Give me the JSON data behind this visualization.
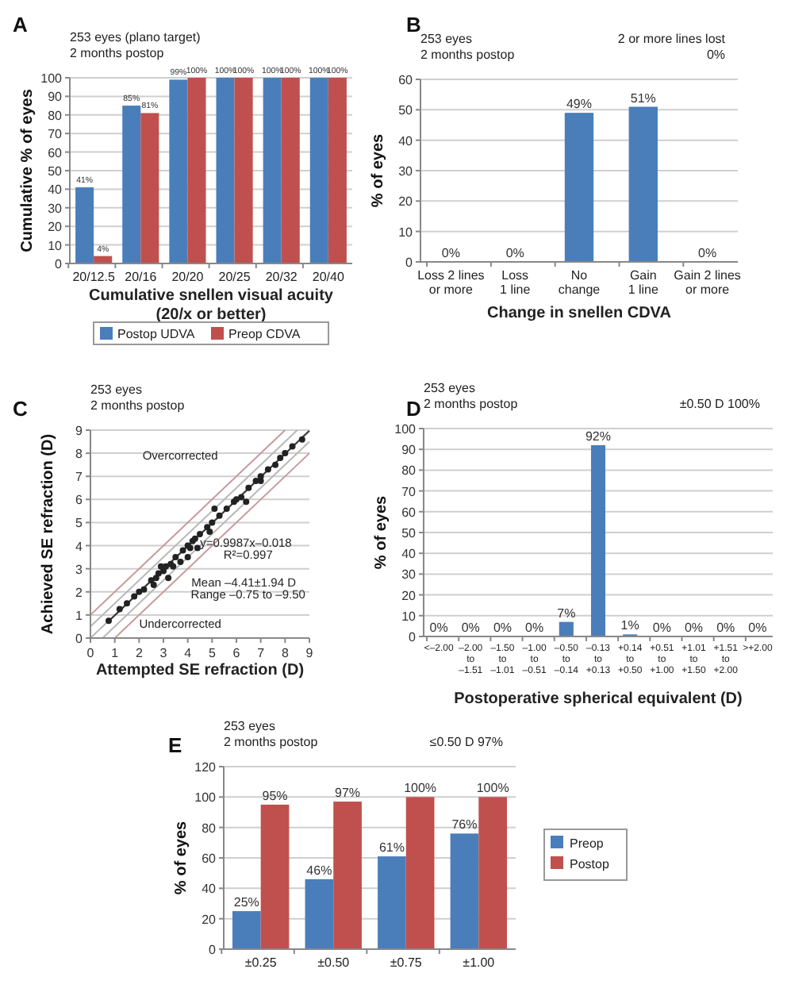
{
  "chart_data": [
    {
      "type": "bar",
      "title": "A",
      "annotations": [
        "253 eyes (plano target)\n2 months postop"
      ],
      "categories": [
        "20/12.5",
        "20/16",
        "20/20",
        "20/25",
        "20/32",
        "20/40"
      ],
      "series": [
        {
          "name": "Postop UDVA",
          "color": "#4a7ebb",
          "values": [
            41,
            85,
            99,
            100,
            100,
            100
          ],
          "value_labels": [
            "41%",
            "85%",
            "99%",
            "100%",
            "100%",
            "100%"
          ]
        },
        {
          "name": "Preop CDVA",
          "color": "#c0504d",
          "values": [
            4,
            81,
            100,
            100,
            100,
            100
          ],
          "value_labels": [
            "4%",
            "81%",
            "100%",
            "100%",
            "100%",
            "100%"
          ]
        }
      ],
      "xlabel": "Cumulative snellen visual acuity\n(20/x or better)",
      "ylabel": "Cumulative % of eyes",
      "ylim": [
        0,
        100
      ],
      "yticks": [
        0,
        10,
        20,
        30,
        40,
        50,
        60,
        70,
        80,
        90,
        100
      ],
      "grid": "y",
      "legend": "bottom"
    },
    {
      "type": "bar",
      "title": "B",
      "annotations": [
        "253 eyes\n2 months postop",
        "2 or more lines lost\n0%"
      ],
      "categories": [
        "Loss 2 lines\nor more",
        "Loss\n1 line",
        "No\nchange",
        "Gain\n1 line",
        "Gain 2 lines\nor more"
      ],
      "series": [
        {
          "color": "#4a7ebb",
          "values": [
            0,
            0,
            49,
            51,
            0
          ],
          "value_labels": [
            "0%",
            "0%",
            "49%",
            "51%",
            "0%"
          ]
        }
      ],
      "xlabel": "Change in snellen CDVA",
      "ylabel": "% of eyes",
      "ylim": [
        0,
        60
      ],
      "yticks": [
        0,
        10,
        20,
        30,
        40,
        50,
        60
      ],
      "grid": "y"
    },
    {
      "type": "scatter",
      "title": "C",
      "annotations": [
        "253 eyes\n2 months postop",
        "Overcorrected",
        "Undercorrected",
        "y=0.9987x–0.018",
        "R²=0.997",
        "Mean –4.41±1.94 D",
        "Range –0.75 to –9.50"
      ],
      "series": [
        {
          "type": "line",
          "color": "#b8b8b8",
          "x": [
            0,
            9
          ],
          "values": [
            0,
            9
          ]
        },
        {
          "type": "line",
          "color": "#b8b8b8",
          "x": [
            0,
            8.5
          ],
          "values": [
            0.5,
            9
          ]
        },
        {
          "type": "line",
          "color": "#b8b8b8",
          "x": [
            0.5,
            9
          ],
          "values": [
            0,
            8.5
          ]
        },
        {
          "type": "line",
          "color": "#c89a9a",
          "x": [
            0,
            8
          ],
          "values": [
            1,
            9
          ]
        },
        {
          "type": "line",
          "color": "#c89a9a",
          "x": [
            1,
            9
          ],
          "values": [
            0,
            8
          ]
        },
        {
          "type": "line",
          "color": "#333333",
          "x": [
            0.75,
            9
          ],
          "values": [
            0.73,
            8.97
          ]
        },
        {
          "type": "scatter",
          "color": "#222222",
          "x": [
            0.75,
            1.2,
            1.5,
            1.8,
            2.0,
            2.2,
            2.5,
            2.6,
            2.7,
            2.8,
            2.9,
            3.0,
            3.1,
            3.2,
            3.3,
            3.4,
            3.5,
            3.7,
            3.8,
            4.0,
            4.0,
            4.1,
            4.2,
            4.3,
            4.4,
            4.5,
            4.8,
            4.9,
            5.0,
            5.1,
            5.3,
            5.6,
            5.9,
            6.0,
            6.2,
            6.4,
            6.5,
            6.8,
            7.0,
            7.0,
            7.3,
            7.6,
            7.8,
            8.0,
            8.3,
            8.7
          ],
          "values": [
            0.75,
            1.25,
            1.5,
            1.8,
            2.0,
            2.1,
            2.5,
            2.3,
            2.6,
            2.8,
            3.1,
            2.9,
            3.1,
            2.6,
            3.2,
            3.1,
            3.5,
            3.3,
            3.8,
            3.5,
            4.0,
            3.9,
            4.2,
            4.3,
            3.9,
            4.5,
            4.8,
            4.6,
            5.0,
            5.6,
            5.3,
            5.6,
            5.9,
            6.0,
            6.1,
            5.9,
            6.5,
            6.8,
            7.0,
            6.8,
            7.3,
            7.5,
            7.8,
            8.0,
            8.3,
            8.6
          ]
        }
      ],
      "xlabel": "Attempted SE refraction (D)",
      "ylabel": "Achieved SE refraction (D)",
      "xlim": [
        0,
        9
      ],
      "ylim": [
        0,
        9
      ],
      "xticks": [
        0,
        1,
        2,
        3,
        4,
        5,
        6,
        7,
        8,
        9
      ],
      "yticks": [
        0,
        1,
        2,
        3,
        4,
        5,
        6,
        7,
        8,
        9
      ],
      "grid": "y"
    },
    {
      "type": "bar",
      "title": "D",
      "annotations": [
        "253 eyes\n2 months postop",
        "±0.50 D 100%"
      ],
      "categories": [
        "<–2.00",
        "–2.00\nto\n–1.51",
        "–1.50\nto\n–1.01",
        "–1.00\nto\n–0.51",
        "–0.50\nto\n–0.14",
        "–0.13\nto\n+0.13",
        "+0.14\nto\n+0.50",
        "+0.51\nto\n+1.00",
        "+1.01\nto\n+1.50",
        "+1.51\nto\n+2.00",
        ">+2.00"
      ],
      "series": [
        {
          "color": "#4a7ebb",
          "values": [
            0,
            0,
            0,
            0,
            7,
            92,
            1,
            0,
            0,
            0,
            0
          ],
          "value_labels": [
            "0%",
            "0%",
            "0%",
            "0%",
            "7%",
            "92%",
            "1%",
            "0%",
            "0%",
            "0%",
            "0%"
          ]
        }
      ],
      "xlabel": "Postoperative spherical equivalent (D)",
      "ylabel": "% of eyes",
      "ylim": [
        0,
        100
      ],
      "yticks": [
        0,
        10,
        20,
        30,
        40,
        50,
        60,
        70,
        80,
        90,
        100
      ],
      "grid": "y"
    },
    {
      "type": "bar",
      "title": "E",
      "annotations": [
        "253 eyes\n2 months postop",
        "≤0.50 D 97%"
      ],
      "categories": [
        "±0.25",
        "±0.50",
        "±0.75",
        "±1.00"
      ],
      "series": [
        {
          "name": "Preop",
          "color": "#4a7ebb",
          "values": [
            25,
            46,
            61,
            76
          ],
          "value_labels": [
            "25%",
            "46%",
            "61%",
            "76%"
          ]
        },
        {
          "name": "Postop",
          "color": "#c0504d",
          "values": [
            95,
            97,
            100,
            100
          ],
          "value_labels": [
            "95%",
            "97%",
            "100%",
            "100%"
          ]
        }
      ],
      "ylabel": "% of eyes",
      "ylim": [
        0,
        120
      ],
      "yticks": [
        0,
        20,
        40,
        60,
        80,
        100,
        120
      ],
      "grid": "y",
      "legend": "right"
    }
  ]
}
